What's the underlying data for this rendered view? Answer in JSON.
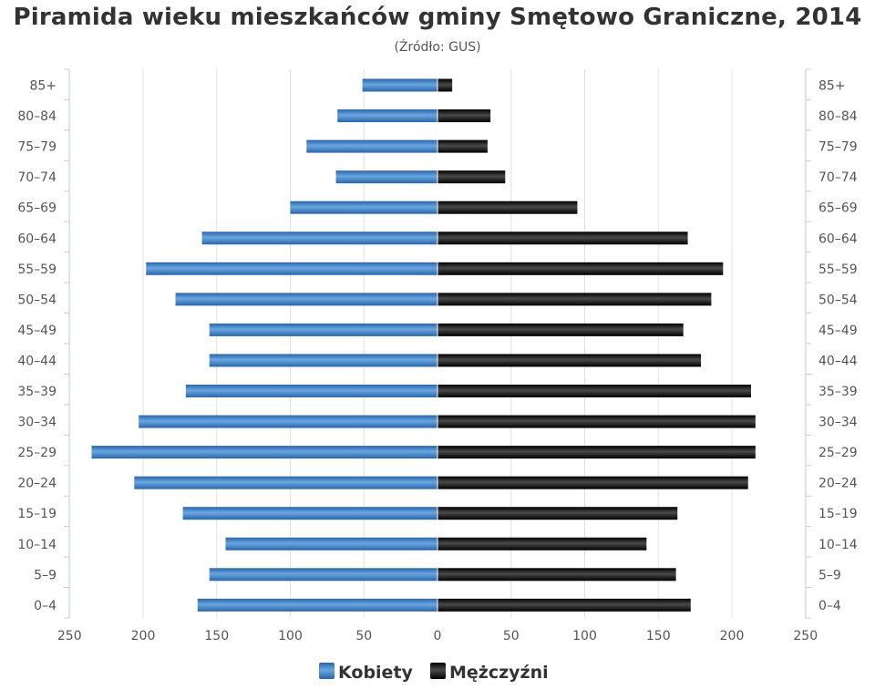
{
  "chart_data": {
    "type": "bar",
    "orientation": "horizontal-population-pyramid",
    "title": "Piramida wieku mieszkańców gminy Smętowo Graniczne, 2014",
    "subtitle": "(Źródło: GUS)",
    "categories": [
      "85+",
      "80–84",
      "75–79",
      "70–74",
      "65–69",
      "60–64",
      "55–59",
      "50–54",
      "45–49",
      "40–44",
      "35–39",
      "30–34",
      "25–29",
      "20–24",
      "15–19",
      "10–14",
      "5–9",
      "0–4"
    ],
    "series": [
      {
        "name": "Kobiety",
        "side": "left",
        "color": "#3d7fc4",
        "values": [
          51,
          68,
          89,
          69,
          100,
          160,
          198,
          178,
          155,
          155,
          171,
          203,
          235,
          206,
          173,
          144,
          155,
          163
        ]
      },
      {
        "name": "Mężczyźni",
        "side": "right",
        "color": "#1a1a1a",
        "values": [
          10,
          36,
          34,
          46,
          95,
          170,
          194,
          186,
          167,
          179,
          213,
          216,
          216,
          211,
          163,
          142,
          162,
          172
        ]
      }
    ],
    "xlim": [
      -250,
      250
    ],
    "x_ticks": [
      "250",
      "200",
      "150",
      "100",
      "50",
      "0",
      "50",
      "100",
      "150",
      "200",
      "250"
    ],
    "grid": true,
    "legend_position": "bottom-center"
  }
}
